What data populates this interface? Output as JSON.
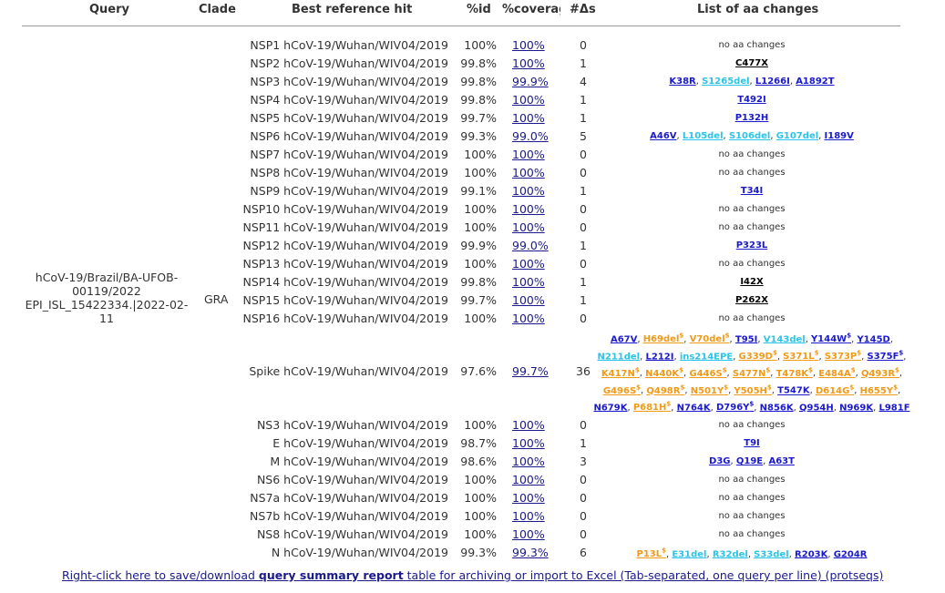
{
  "headers": {
    "query": "Query",
    "clade": "Clade",
    "best_ref": "Best reference hit",
    "pid": "%id",
    "coverage": "%coverag",
    "delta": "#Δs",
    "changes": "List of aa changes"
  },
  "query": {
    "name": "hCoV-19/Brazil/BA-UFOB-00119/2022 EPI_ISL_15422334.|2022-02-11",
    "clade": "GRA"
  },
  "rows": [
    {
      "gene": "NSP1 hCoV-19/Wuhan/WIV04/2019",
      "pid": "100%",
      "cov": "100%",
      "n": "0",
      "none": "no aa changes"
    },
    {
      "gene": "NSP2 hCoV-19/Wuhan/WIV04/2019",
      "pid": "99.8%",
      "cov": "100%",
      "n": "1",
      "changes": [
        {
          "t": "C477X",
          "c": "b"
        }
      ]
    },
    {
      "gene": "NSP3 hCoV-19/Wuhan/WIV04/2019",
      "pid": "99.8%",
      "cov": "99.9%",
      "n": "4",
      "changes": [
        {
          "t": "K38R",
          "c": "k"
        },
        {
          "t": "S1265del",
          "c": "c"
        },
        {
          "t": "L1266I",
          "c": "k"
        },
        {
          "t": "A1892T",
          "c": "k"
        }
      ]
    },
    {
      "gene": "NSP4 hCoV-19/Wuhan/WIV04/2019",
      "pid": "99.8%",
      "cov": "100%",
      "n": "1",
      "changes": [
        {
          "t": "T492I",
          "c": "k"
        }
      ]
    },
    {
      "gene": "NSP5 hCoV-19/Wuhan/WIV04/2019",
      "pid": "99.7%",
      "cov": "100%",
      "n": "1",
      "changes": [
        {
          "t": "P132H",
          "c": "k"
        }
      ]
    },
    {
      "gene": "NSP6 hCoV-19/Wuhan/WIV04/2019",
      "pid": "99.3%",
      "cov": "99.0%",
      "n": "5",
      "changes": [
        {
          "t": "A46V",
          "c": "k"
        },
        {
          "t": "L105del",
          "c": "c"
        },
        {
          "t": "S106del",
          "c": "c"
        },
        {
          "t": "G107del",
          "c": "c"
        },
        {
          "t": "I189V",
          "c": "k"
        }
      ]
    },
    {
      "gene": "NSP7 hCoV-19/Wuhan/WIV04/2019",
      "pid": "100%",
      "cov": "100%",
      "n": "0",
      "none": "no aa changes"
    },
    {
      "gene": "NSP8 hCoV-19/Wuhan/WIV04/2019",
      "pid": "100%",
      "cov": "100%",
      "n": "0",
      "none": "no aa changes"
    },
    {
      "gene": "NSP9 hCoV-19/Wuhan/WIV04/2019",
      "pid": "99.1%",
      "cov": "100%",
      "n": "1",
      "changes": [
        {
          "t": "T34I",
          "c": "k"
        }
      ]
    },
    {
      "gene": "NSP10 hCoV-19/Wuhan/WIV04/2019",
      "pid": "100%",
      "cov": "100%",
      "n": "0",
      "none": "no aa changes"
    },
    {
      "gene": "NSP11 hCoV-19/Wuhan/WIV04/2019",
      "pid": "100%",
      "cov": "100%",
      "n": "0",
      "none": "no aa changes"
    },
    {
      "gene": "NSP12 hCoV-19/Wuhan/WIV04/2019",
      "pid": "99.9%",
      "cov": "99.0%",
      "n": "1",
      "changes": [
        {
          "t": "P323L",
          "c": "k"
        }
      ]
    },
    {
      "gene": "NSP13 hCoV-19/Wuhan/WIV04/2019",
      "pid": "100%",
      "cov": "100%",
      "n": "0",
      "none": "no aa changes"
    },
    {
      "gene": "NSP14 hCoV-19/Wuhan/WIV04/2019",
      "pid": "99.8%",
      "cov": "100%",
      "n": "1",
      "changes": [
        {
          "t": "I42X",
          "c": "b"
        }
      ]
    },
    {
      "gene": "NSP15 hCoV-19/Wuhan/WIV04/2019",
      "pid": "99.7%",
      "cov": "100%",
      "n": "1",
      "changes": [
        {
          "t": "P262X",
          "c": "b"
        }
      ]
    },
    {
      "gene": "NSP16 hCoV-19/Wuhan/WIV04/2019",
      "pid": "100%",
      "cov": "100%",
      "n": "0",
      "none": "no aa changes"
    }
  ],
  "spike": {
    "gene": "Spike hCoV-19/Wuhan/WIV04/2019",
    "pid": "97.6%",
    "cov": "99.7%",
    "n": "36",
    "changes": [
      {
        "t": "A67V",
        "c": "k"
      },
      {
        "t": "H69del",
        "c": "o",
        "s": "$"
      },
      {
        "t": "V70del",
        "c": "o",
        "s": "$"
      },
      {
        "t": "T95I",
        "c": "k"
      },
      {
        "t": "V143del",
        "c": "c"
      },
      {
        "t": "Y144W",
        "c": "k",
        "s": "$"
      },
      {
        "t": "Y145D",
        "c": "k"
      },
      {
        "t": "N211del",
        "c": "c"
      },
      {
        "t": "L212I",
        "c": "k"
      },
      {
        "t": "ins214EPE",
        "c": "c"
      },
      {
        "t": "G339D",
        "c": "o",
        "s": "$"
      },
      {
        "t": "S371L",
        "c": "o",
        "s": "$"
      },
      {
        "t": "S373P",
        "c": "o",
        "s": "$"
      },
      {
        "t": "S375F",
        "c": "k",
        "s": "$"
      },
      {
        "t": "K417N",
        "c": "o",
        "s": "$"
      },
      {
        "t": "N440K",
        "c": "o",
        "s": "$"
      },
      {
        "t": "G446S",
        "c": "o",
        "s": "$"
      },
      {
        "t": "S477N",
        "c": "o",
        "s": "$"
      },
      {
        "t": "T478K",
        "c": "o",
        "s": "$"
      },
      {
        "t": "E484A",
        "c": "o",
        "s": "$"
      },
      {
        "t": "Q493R",
        "c": "o",
        "s": "$"
      },
      {
        "t": "G496S",
        "c": "o",
        "s": "$"
      },
      {
        "t": "Q498R",
        "c": "o",
        "s": "$"
      },
      {
        "t": "N501Y",
        "c": "o",
        "s": "$"
      },
      {
        "t": "Y505H",
        "c": "o",
        "s": "$"
      },
      {
        "t": "T547K",
        "c": "k"
      },
      {
        "t": "D614G",
        "c": "o",
        "s": "$"
      },
      {
        "t": "H655Y",
        "c": "o",
        "s": "$"
      },
      {
        "t": "N679K",
        "c": "k"
      },
      {
        "t": "P681H",
        "c": "o",
        "s": "$"
      },
      {
        "t": "N764K",
        "c": "k"
      },
      {
        "t": "D796Y",
        "c": "k",
        "s": "$"
      },
      {
        "t": "N856K",
        "c": "k"
      },
      {
        "t": "Q954H",
        "c": "k"
      },
      {
        "t": "N969K",
        "c": "k"
      },
      {
        "t": "L981F",
        "c": "k"
      }
    ]
  },
  "rows2": [
    {
      "gene": "NS3 hCoV-19/Wuhan/WIV04/2019",
      "pid": "100%",
      "cov": "100%",
      "n": "0",
      "none": "no aa changes"
    },
    {
      "gene": "E hCoV-19/Wuhan/WIV04/2019",
      "pid": "98.7%",
      "cov": "100%",
      "n": "1",
      "changes": [
        {
          "t": "T9I",
          "c": "k"
        }
      ]
    },
    {
      "gene": "M hCoV-19/Wuhan/WIV04/2019",
      "pid": "98.6%",
      "cov": "100%",
      "n": "3",
      "changes": [
        {
          "t": "D3G",
          "c": "k"
        },
        {
          "t": "Q19E",
          "c": "k"
        },
        {
          "t": "A63T",
          "c": "k"
        }
      ]
    },
    {
      "gene": "NS6 hCoV-19/Wuhan/WIV04/2019",
      "pid": "100%",
      "cov": "100%",
      "n": "0",
      "none": "no aa changes"
    },
    {
      "gene": "NS7a hCoV-19/Wuhan/WIV04/2019",
      "pid": "100%",
      "cov": "100%",
      "n": "0",
      "none": "no aa changes"
    },
    {
      "gene": "NS7b hCoV-19/Wuhan/WIV04/2019",
      "pid": "100%",
      "cov": "100%",
      "n": "0",
      "none": "no aa changes"
    },
    {
      "gene": "NS8 hCoV-19/Wuhan/WIV04/2019",
      "pid": "100%",
      "cov": "100%",
      "n": "0",
      "none": "no aa changes"
    },
    {
      "gene": "N hCoV-19/Wuhan/WIV04/2019",
      "pid": "99.3%",
      "cov": "99.3%",
      "n": "6",
      "changes": [
        {
          "t": "P13L",
          "c": "o",
          "s": "$"
        },
        {
          "t": "E31del",
          "c": "c"
        },
        {
          "t": "R32del",
          "c": "c"
        },
        {
          "t": "S33del",
          "c": "c"
        },
        {
          "t": "R203K",
          "c": "k"
        },
        {
          "t": "G204R",
          "c": "k"
        }
      ]
    }
  ],
  "footer": {
    "pre": "Right-click here to save/download ",
    "bold": "query summary report",
    "post": " table for archiving or import to Excel (Tab-separated, one query per line) (protseqs)"
  },
  "colors": {
    "link": "#1a1acc",
    "cyan": "#2cc4e6",
    "orange": "#f09a18",
    "black": "#000000"
  }
}
